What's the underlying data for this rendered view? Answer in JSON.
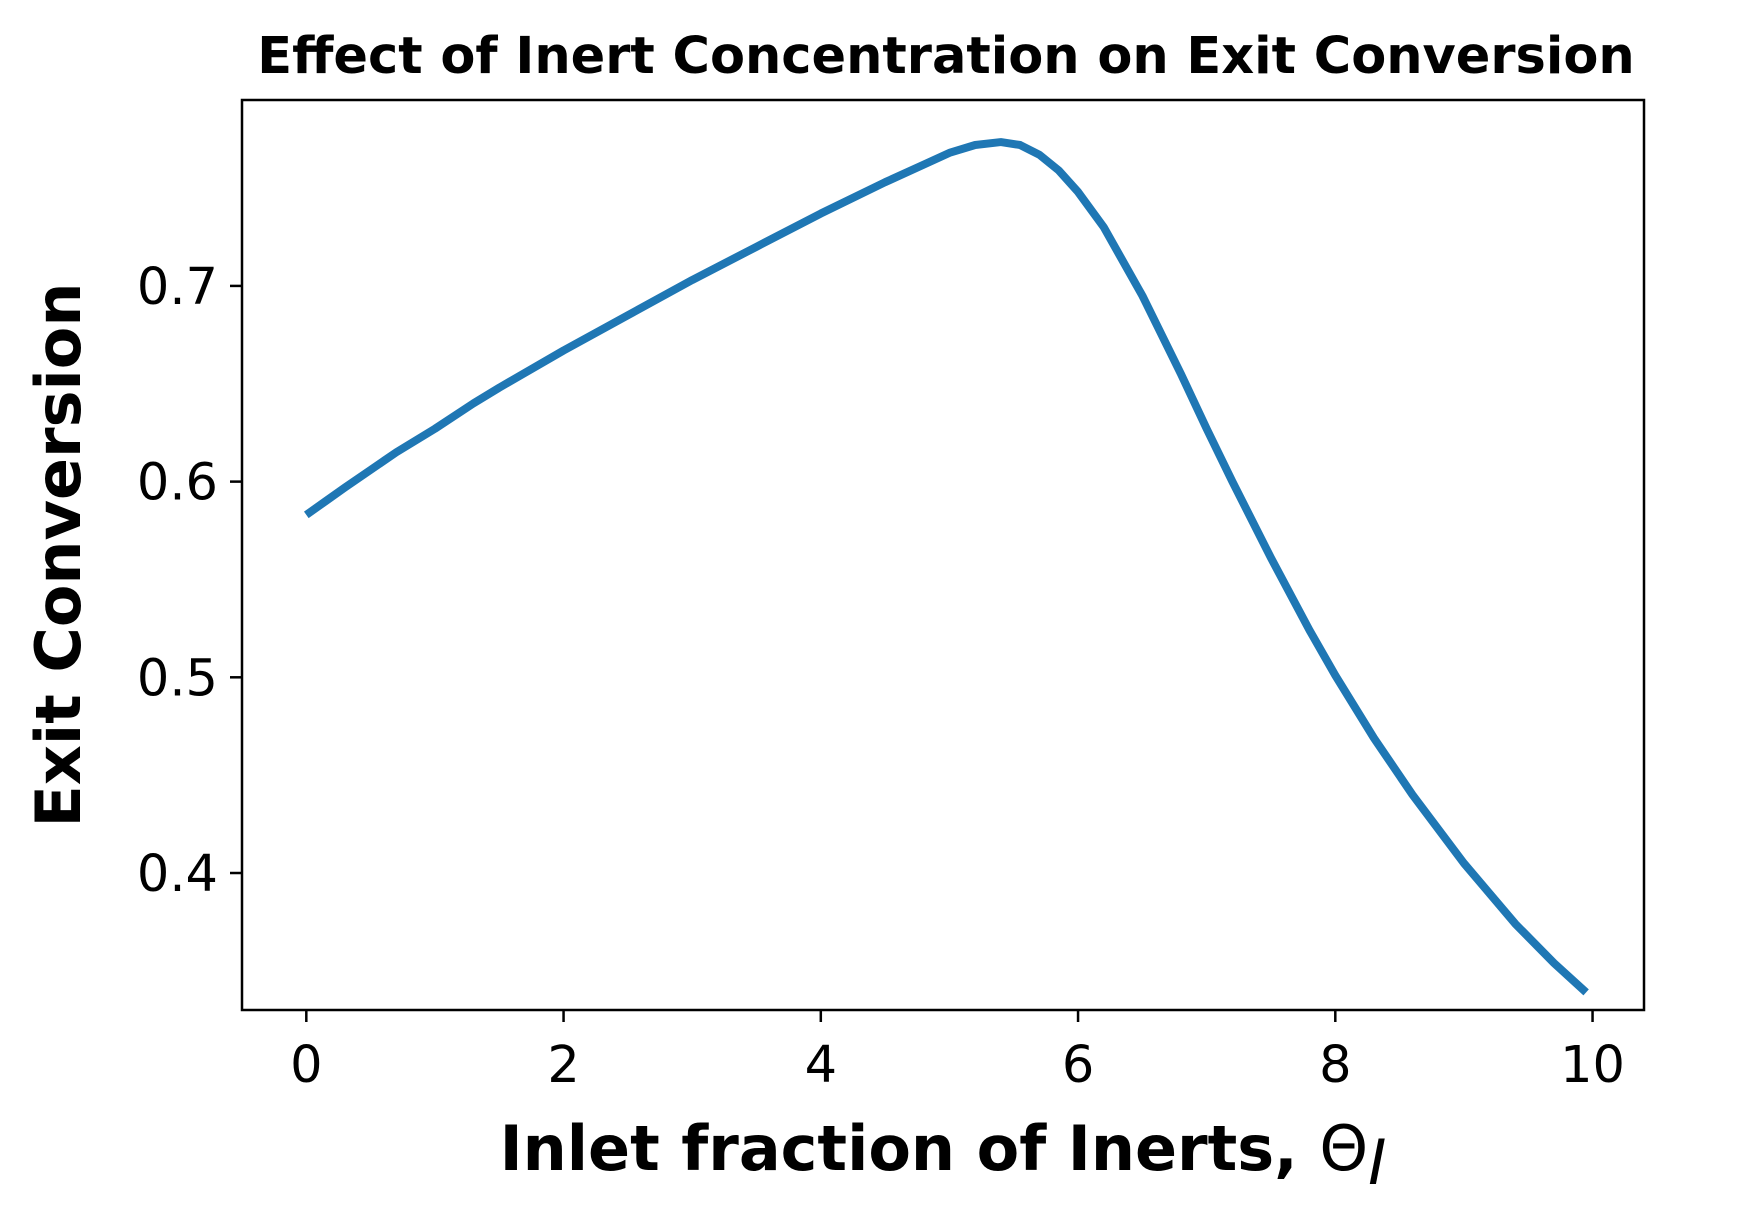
{
  "chart_data": {
    "type": "line",
    "title": "Effect of Inert Concentration on Exit Conversion",
    "xlabel_bold": "Inlet fraction of Inerts, ",
    "xlabel_symbol": "Θ",
    "xlabel_subscript": "I",
    "ylabel": "Exit Conversion",
    "xlim": [
      -0.5,
      10.4
    ],
    "ylim": [
      0.33,
      0.795
    ],
    "xticks": [
      0,
      2,
      4,
      6,
      8,
      10
    ],
    "xtick_labels": [
      "0",
      "2",
      "4",
      "6",
      "8",
      "10"
    ],
    "yticks": [
      0.4,
      0.5,
      0.6,
      0.7
    ],
    "ytick_labels": [
      "0.4",
      "0.5",
      "0.6",
      "0.7"
    ],
    "grid": false,
    "series": [
      {
        "color": "#1f77b4",
        "x": [
          0.0,
          0.15,
          0.3,
          0.5,
          0.7,
          1.0,
          1.3,
          1.5,
          2.0,
          2.5,
          3.0,
          3.5,
          4.0,
          4.5,
          4.8,
          5.0,
          5.2,
          5.4,
          5.55,
          5.7,
          5.85,
          6.0,
          6.2,
          6.5,
          6.8,
          7.0,
          7.2,
          7.5,
          7.8,
          8.0,
          8.3,
          8.6,
          9.0,
          9.4,
          9.7,
          9.95
        ],
        "y": [
          0.583,
          0.59,
          0.597,
          0.606,
          0.615,
          0.627,
          0.64,
          0.648,
          0.667,
          0.685,
          0.703,
          0.72,
          0.737,
          0.753,
          0.762,
          0.768,
          0.772,
          0.7735,
          0.772,
          0.767,
          0.759,
          0.748,
          0.73,
          0.695,
          0.655,
          0.627,
          0.6,
          0.561,
          0.524,
          0.501,
          0.469,
          0.44,
          0.405,
          0.374,
          0.354,
          0.339
        ]
      }
    ]
  }
}
